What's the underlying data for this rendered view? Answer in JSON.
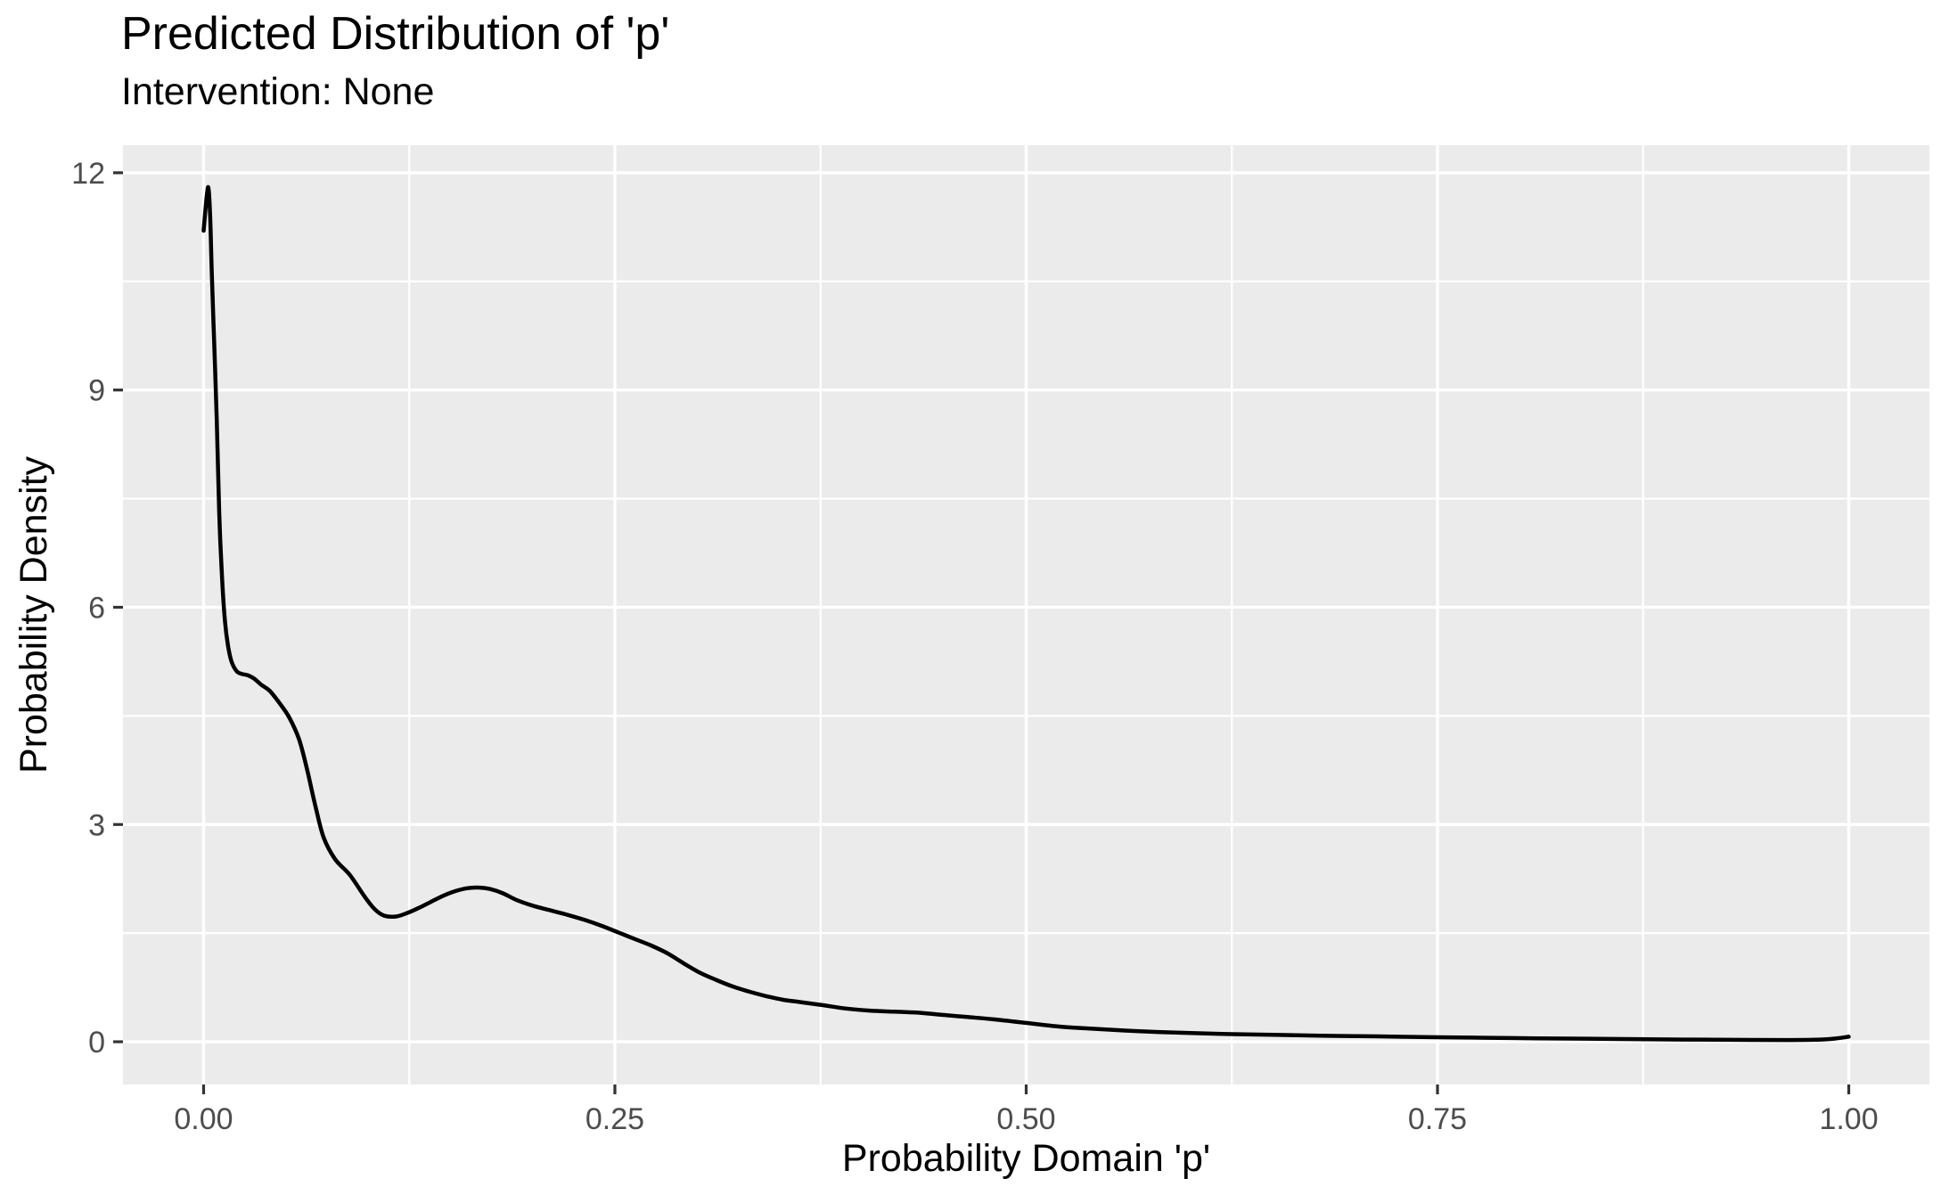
{
  "header": {
    "title": "Predicted Distribution of 'p'",
    "subtitle": "Intervention: None"
  },
  "chart_data": {
    "type": "line",
    "title": "Predicted Distribution of 'p'",
    "subtitle": "Intervention: None",
    "xlabel": "Probability Domain 'p'",
    "ylabel": "Probability Density",
    "x_tick_values": [
      0,
      0.25,
      0.5,
      0.75,
      1.0
    ],
    "x_tick_labels": [
      "0.00",
      "0.25",
      "0.50",
      "0.75",
      "1.00"
    ],
    "y_tick_values": [
      0,
      3,
      6,
      9,
      12
    ],
    "y_tick_labels": [
      "0",
      "3",
      "6",
      "9",
      "12"
    ],
    "x_minor_gridlines": [
      0.125,
      0.375,
      0.625,
      0.875
    ],
    "y_minor_gridlines": [
      1.5,
      4.5,
      7.5,
      10.5
    ],
    "xlim": [
      -0.049,
      1.049
    ],
    "ylim": [
      -0.59,
      12.38
    ],
    "grid": "major and minor, white on gray panel",
    "legend": false,
    "colors": {
      "line": "#000000",
      "panel_background": "#EBEBEB",
      "gridline": "#FFFFFF",
      "tick_label": "#4D4D4D",
      "tick_mark": "#333333",
      "title_text": "#000000"
    },
    "series": [
      {
        "name": "predicted density of p",
        "x": [
          0.0,
          0.002,
          0.003,
          0.004,
          0.005,
          0.0065,
          0.008,
          0.0095,
          0.011,
          0.013,
          0.015,
          0.017,
          0.02,
          0.023,
          0.027,
          0.031,
          0.035,
          0.04,
          0.046,
          0.052,
          0.058,
          0.063,
          0.068,
          0.073,
          0.08,
          0.089,
          0.098,
          0.104,
          0.11,
          0.117,
          0.124,
          0.131,
          0.138,
          0.146,
          0.153,
          0.16,
          0.167,
          0.174,
          0.182,
          0.19,
          0.2,
          0.21,
          0.22,
          0.232,
          0.242,
          0.252,
          0.262,
          0.272,
          0.282,
          0.292,
          0.302,
          0.312,
          0.322,
          0.332,
          0.342,
          0.352,
          0.362,
          0.375,
          0.39,
          0.405,
          0.42,
          0.435,
          0.45,
          0.465,
          0.48,
          0.5,
          0.52,
          0.54,
          0.56,
          0.58,
          0.6,
          0.625,
          0.65,
          0.675,
          0.7,
          0.73,
          0.75,
          0.78,
          0.81,
          0.84,
          0.87,
          0.9,
          0.93,
          0.96,
          0.98,
          0.99,
          1.0
        ],
        "y": [
          11.2,
          11.7,
          11.78,
          11.4,
          10.6,
          9.6,
          8.6,
          7.3,
          6.5,
          5.8,
          5.45,
          5.25,
          5.12,
          5.08,
          5.06,
          5.01,
          4.93,
          4.85,
          4.68,
          4.48,
          4.18,
          3.75,
          3.25,
          2.82,
          2.52,
          2.3,
          2.0,
          1.83,
          1.74,
          1.73,
          1.78,
          1.85,
          1.93,
          2.02,
          2.08,
          2.12,
          2.13,
          2.11,
          2.05,
          1.96,
          1.88,
          1.82,
          1.76,
          1.68,
          1.6,
          1.51,
          1.42,
          1.33,
          1.22,
          1.08,
          0.95,
          0.85,
          0.76,
          0.69,
          0.63,
          0.58,
          0.55,
          0.51,
          0.46,
          0.43,
          0.415,
          0.4,
          0.37,
          0.34,
          0.31,
          0.26,
          0.21,
          0.18,
          0.155,
          0.135,
          0.12,
          0.105,
          0.095,
          0.085,
          0.078,
          0.068,
          0.062,
          0.055,
          0.048,
          0.042,
          0.036,
          0.03,
          0.026,
          0.024,
          0.028,
          0.04,
          0.07
        ]
      }
    ]
  }
}
